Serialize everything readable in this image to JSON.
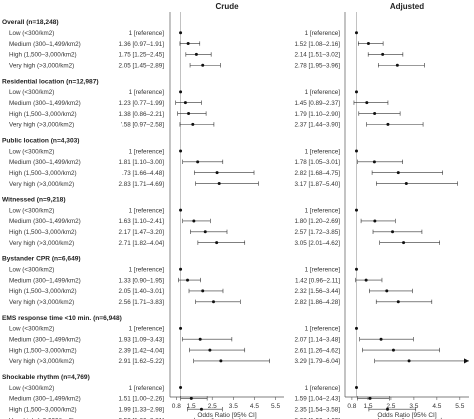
{
  "chart_data": {
    "type": "forest",
    "panels": [
      {
        "title": "Crude",
        "xlabel": "Odds Ratio [95% CI]",
        "ticks": [
          "0.8",
          "1.5",
          "2.5",
          "3.5",
          "4.5",
          "5.5"
        ],
        "xlim": [
          0.5,
          5.9
        ],
        "reference_line": 1
      },
      {
        "title": "Adjusted",
        "xlabel": "Odds Ratio [95% CI]",
        "ticks": [
          "0.8",
          "1.5",
          "2.5",
          "3.5",
          "4.5",
          "5.5"
        ],
        "xlim": [
          0.5,
          5.9
        ],
        "reference_line": 1
      }
    ],
    "groups": [
      {
        "header": "Overall (n=18,248)",
        "rows": [
          {
            "label": "Low (<300/km2)",
            "crude": {
              "text": "1 [reference]",
              "or": 1,
              "lo": 1,
              "hi": 1
            },
            "adjusted": {
              "text": "1 [reference]",
              "or": 1,
              "lo": 1,
              "hi": 1
            }
          },
          {
            "label": "Medium (300–1,499/km2)",
            "crude": {
              "text": "1.36 [0.97–1.91]",
              "or": 1.36,
              "lo": 0.97,
              "hi": 1.91
            },
            "adjusted": {
              "text": "1.52 [1.08–2.16]",
              "or": 1.52,
              "lo": 1.08,
              "hi": 2.16
            }
          },
          {
            "label": "High (1,500–3,000/km2)",
            "crude": {
              "text": "1.75 [1.25–2.45]",
              "or": 1.75,
              "lo": 1.25,
              "hi": 2.45
            },
            "adjusted": {
              "text": "2.14 [1.51–3.02]",
              "or": 2.14,
              "lo": 1.51,
              "hi": 3.02
            }
          },
          {
            "label": "Very high (>3,000/km2)",
            "crude": {
              "text": "2.05 [1.45–2.89]",
              "or": 2.05,
              "lo": 1.45,
              "hi": 2.89
            },
            "adjusted": {
              "text": "2.78 [1.95–3.96]",
              "or": 2.78,
              "lo": 1.95,
              "hi": 3.96
            }
          }
        ]
      },
      {
        "header": "Residential location (n=12,987)",
        "rows": [
          {
            "label": "Low (<300/km2)",
            "crude": {
              "text": "1 [reference]",
              "or": 1,
              "lo": 1,
              "hi": 1
            },
            "adjusted": {
              "text": "1 [reference]",
              "or": 1,
              "lo": 1,
              "hi": 1
            }
          },
          {
            "label": "Medium (300–1,499/km2)",
            "crude": {
              "text": "1.23 [0.77–1.99]",
              "or": 1.23,
              "lo": 0.77,
              "hi": 1.99
            },
            "adjusted": {
              "text": "1.45 [0.89–2.37]",
              "or": 1.45,
              "lo": 0.89,
              "hi": 2.37
            }
          },
          {
            "label": "High (1,500–3,000/km2)",
            "crude": {
              "text": "1.38 [0.86–2.21]",
              "or": 1.38,
              "lo": 0.86,
              "hi": 2.21
            },
            "adjusted": {
              "text": "1.79 [1.10–2.90]",
              "or": 1.79,
              "lo": 1.1,
              "hi": 2.9
            }
          },
          {
            "label": "Very high (>3,000/km2)",
            "crude": {
              "text": "'.58 [0.97–2.58]",
              "or": 1.58,
              "lo": 0.97,
              "hi": 2.58
            },
            "adjusted": {
              "text": "2.37 [1.44–3.90]",
              "or": 2.37,
              "lo": 1.44,
              "hi": 3.9
            }
          }
        ]
      },
      {
        "header": "Public location (n=4,303)",
        "rows": [
          {
            "label": "Low (<300/km2)",
            "crude": {
              "text": "1 [reference]",
              "or": 1,
              "lo": 1,
              "hi": 1
            },
            "adjusted": {
              "text": "1 [reference]",
              "or": 1,
              "lo": 1,
              "hi": 1
            }
          },
          {
            "label": "Medium (300–1,499/km2)",
            "crude": {
              "text": "1.81 [1.10–3.00]",
              "or": 1.81,
              "lo": 1.1,
              "hi": 3.0
            },
            "adjusted": {
              "text": "1.78 [1.05–3.01]",
              "or": 1.78,
              "lo": 1.05,
              "hi": 3.01
            }
          },
          {
            "label": "High (1,500–3,000/km2)",
            "crude": {
              "text": ".73 [1.66–4.48]",
              "or": 2.73,
              "lo": 1.66,
              "hi": 4.48
            },
            "adjusted": {
              "text": "2.82 [1.68–4.75]",
              "or": 2.82,
              "lo": 1.68,
              "hi": 4.75
            }
          },
          {
            "label": "Very high (>3,000/km2)",
            "crude": {
              "text": "2.83 [1.71–4.69]",
              "or": 2.83,
              "lo": 1.71,
              "hi": 4.69
            },
            "adjusted": {
              "text": "3.17 [1.87–5.40]",
              "or": 3.17,
              "lo": 1.87,
              "hi": 5.4
            }
          }
        ]
      },
      {
        "header": "Witnessed (n=9,218)",
        "rows": [
          {
            "label": "Low (<300/km2)",
            "crude": {
              "text": "1 [reference]",
              "or": 1,
              "lo": 1,
              "hi": 1
            },
            "adjusted": {
              "text": "1 [reference]",
              "or": 1,
              "lo": 1,
              "hi": 1
            }
          },
          {
            "label": "Medium (300–1,499/km2)",
            "crude": {
              "text": "1.63 [1.10–2.41]",
              "or": 1.63,
              "lo": 1.1,
              "hi": 2.41
            },
            "adjusted": {
              "text": "1.80 [1.20–2.69]",
              "or": 1.8,
              "lo": 1.2,
              "hi": 2.69
            }
          },
          {
            "label": "High (1,500–3,000/km2)",
            "crude": {
              "text": "2.17 [1.47–3.20]",
              "or": 2.17,
              "lo": 1.47,
              "hi": 3.2
            },
            "adjusted": {
              "text": "2.57 [1.72–3.85]",
              "or": 2.57,
              "lo": 1.72,
              "hi": 3.85
            }
          },
          {
            "label": "Very high (>3,000/km2)",
            "crude": {
              "text": "2.71 [1.82–4.04]",
              "or": 2.71,
              "lo": 1.82,
              "hi": 4.04
            },
            "adjusted": {
              "text": "3.05 [2.01–4.62]",
              "or": 3.05,
              "lo": 2.01,
              "hi": 4.62
            }
          }
        ]
      },
      {
        "header": "Bystander CPR (n=6,649)",
        "rows": [
          {
            "label": "Low (<300/km2)",
            "crude": {
              "text": "1 [reference]",
              "or": 1,
              "lo": 1,
              "hi": 1
            },
            "adjusted": {
              "text": "1 [reference]",
              "or": 1,
              "lo": 1,
              "hi": 1
            }
          },
          {
            "label": "Medium (300–1,499/km2)",
            "crude": {
              "text": "1.33 [0.90–1.95]",
              "or": 1.33,
              "lo": 0.9,
              "hi": 1.95
            },
            "adjusted": {
              "text": "1.42 [0.96–2.11]",
              "or": 1.42,
              "lo": 0.96,
              "hi": 2.11
            }
          },
          {
            "label": "High (1,500–3,000/km2)",
            "crude": {
              "text": "2.05 [1.40–3.01]",
              "or": 2.05,
              "lo": 1.4,
              "hi": 3.01
            },
            "adjusted": {
              "text": "2.32 [1.56–3.44]",
              "or": 2.32,
              "lo": 1.56,
              "hi": 3.44
            }
          },
          {
            "label": "Very high (>3,000/km2)",
            "crude": {
              "text": "2.56 [1.71–3.83]",
              "or": 2.56,
              "lo": 1.71,
              "hi": 3.83
            },
            "adjusted": {
              "text": "2.82 [1.86–4.28]",
              "or": 2.82,
              "lo": 1.86,
              "hi": 4.28
            }
          }
        ]
      },
      {
        "header": "EMS response time <10 min. (n=6,948)",
        "rows": [
          {
            "label": "Low (<300/km2)",
            "crude": {
              "text": "1 [reference]",
              "or": 1,
              "lo": 1,
              "hi": 1
            },
            "adjusted": {
              "text": "1 [reference]",
              "or": 1,
              "lo": 1,
              "hi": 1
            }
          },
          {
            "label": "Medium (300–1,499/km2)",
            "crude": {
              "text": "1.93 [1.09–3.43]",
              "or": 1.93,
              "lo": 1.09,
              "hi": 3.43
            },
            "adjusted": {
              "text": "2.07 [1.14–3.48]",
              "or": 2.07,
              "lo": 1.14,
              "hi": 3.48
            }
          },
          {
            "label": "High (1,500–3,000/km2)",
            "crude": {
              "text": "2.39 [1.42–4.04]",
              "or": 2.39,
              "lo": 1.42,
              "hi": 4.04
            },
            "adjusted": {
              "text": "2.61 [1.26–4.62]",
              "or": 2.61,
              "lo": 1.26,
              "hi": 4.62
            }
          },
          {
            "label": "Very high (>3,000/km2)",
            "crude": {
              "text": "2.91 [1.62–5.22]",
              "or": 2.91,
              "lo": 1.62,
              "hi": 5.22
            },
            "adjusted": {
              "text": "3.29 [1.79–6.04]",
              "or": 3.29,
              "lo": 1.79,
              "hi": 6.04
            }
          }
        ]
      },
      {
        "header": "Shockable rhythm (n=4,769)",
        "rows": [
          {
            "label": "Low (<300/km2)",
            "crude": {
              "text": "1 [reference]",
              "or": 1,
              "lo": 1,
              "hi": 1
            },
            "adjusted": {
              "text": "1 [reference]",
              "or": 1,
              "lo": 1,
              "hi": 1
            }
          },
          {
            "label": "Medium (300–1,499/km2)",
            "crude": {
              "text": "1.51 [1.00–2.26]",
              "or": 1.51,
              "lo": 1.0,
              "hi": 2.26
            },
            "adjusted": {
              "text": "1.59 [1.04–2.43]",
              "or": 1.59,
              "lo": 1.04,
              "hi": 2.43
            }
          },
          {
            "label": "High (1,500–3,000/km2)",
            "crude": {
              "text": "1.99 [1.33–2.98]",
              "or": 1.99,
              "lo": 1.33,
              "hi": 2.98
            },
            "adjusted": {
              "text": "2.35 [1.54–3.58]",
              "or": 2.35,
              "lo": 1.54,
              "hi": 3.58
            }
          },
          {
            "label": "Very high (>3,000/km2)",
            "crude": {
              "text": "2.52 [1.66–3.81]",
              "or": 2.52,
              "lo": 1.66,
              "hi": 3.81
            },
            "adjusted": {
              "text": "3.03 [1.96–4.69]",
              "or": 3.03,
              "lo": 1.96,
              "hi": 4.69
            }
          }
        ]
      }
    ]
  }
}
